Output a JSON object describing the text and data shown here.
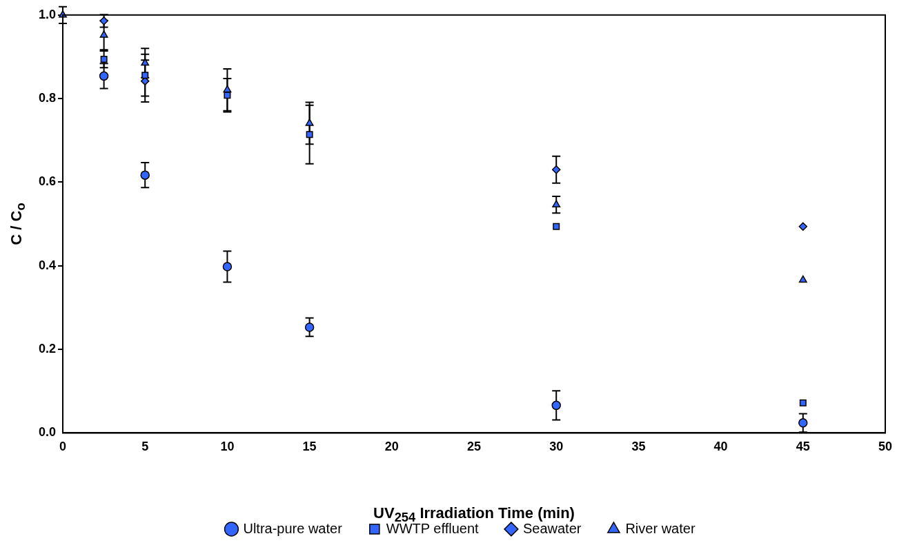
{
  "chart_data": {
    "type": "scatter",
    "xlabel": "UV$_{254}$ Irradiation Time (min)",
    "ylabel": "C / C$_{o}$",
    "x": [
      0,
      2.5,
      5,
      10,
      15,
      30,
      45
    ],
    "series": [
      {
        "name": "Ultra-pure water",
        "color": "#3366ff",
        "marker": "circle",
        "values": [
          null,
          0.854,
          0.617,
          0.398,
          0.253,
          0.066,
          0.024
        ],
        "errors": [
          null,
          0.03,
          0.03,
          0.037,
          0.022,
          0.035,
          0.022
        ]
      },
      {
        "name": "WWTP effluent",
        "color": "#3366ff",
        "marker": "square",
        "values": [
          null,
          0.894,
          0.856,
          0.808,
          0.714,
          0.494,
          0.072
        ],
        "errors": [
          null,
          0.02,
          0.05,
          0.04,
          0.07,
          null,
          null
        ]
      },
      {
        "name": "Seawater",
        "color": "#3366ff",
        "marker": "diamond",
        "values": [
          null,
          0.986,
          0.842,
          null,
          null,
          0.63,
          0.494
        ],
        "errors": [
          null,
          0.015,
          0.05,
          null,
          null,
          0.032,
          null
        ]
      },
      {
        "name": "River water",
        "color": "#3366ff",
        "marker": "triangle",
        "values": [
          1.0,
          0.952,
          0.885,
          0.821,
          0.741,
          0.546,
          0.366
        ],
        "errors": [
          0.02,
          0.035,
          0.035,
          0.05,
          0.05,
          0.02,
          null
        ]
      }
    ],
    "xlim": [
      0,
      50
    ],
    "xticks": [
      0,
      5,
      10,
      15,
      20,
      25,
      30,
      35,
      40,
      45,
      50
    ],
    "ylim": [
      0,
      1
    ],
    "yticks": [
      {
        "value": 0,
        "label": "0.0"
      },
      {
        "value": 0.2,
        "label": "0.2"
      },
      {
        "value": 0.4,
        "label": "0.4"
      },
      {
        "value": 0.6,
        "label": "0.6"
      },
      {
        "value": 0.8,
        "label": "0.8"
      },
      {
        "value": 1,
        "label": "1.0"
      }
    ],
    "grid": false,
    "legend": "bottom"
  }
}
